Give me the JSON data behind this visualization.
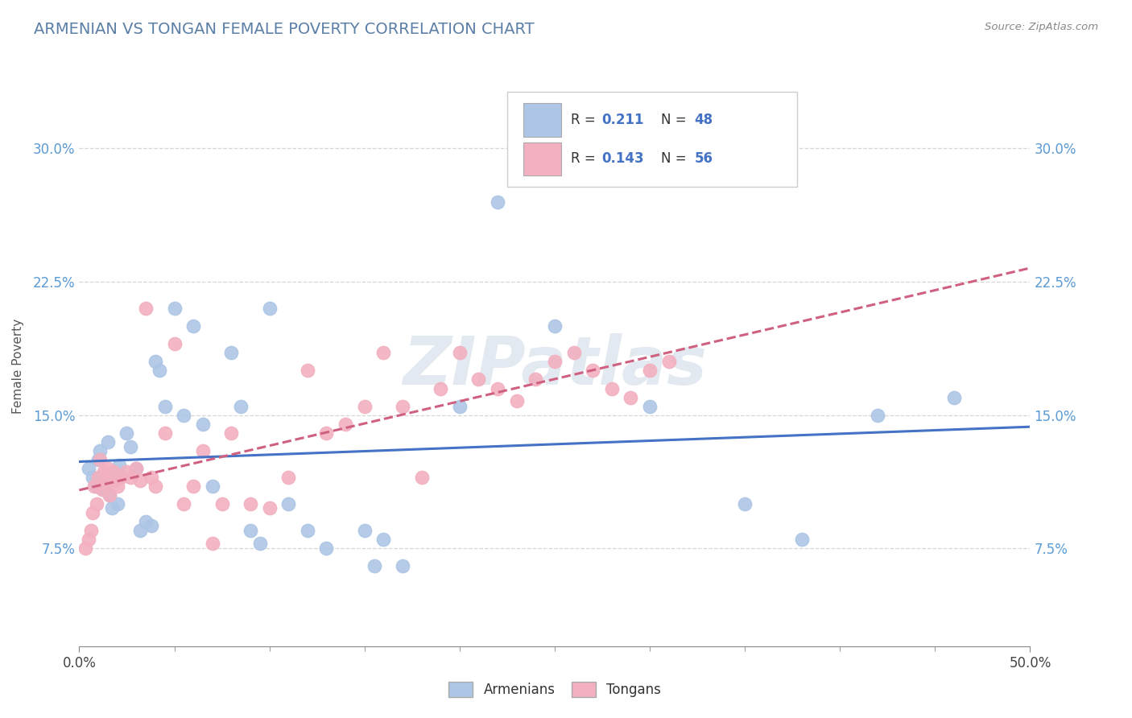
{
  "title": "ARMENIAN VS TONGAN FEMALE POVERTY CORRELATION CHART",
  "source": "Source: ZipAtlas.com",
  "ylabel": "Female Poverty",
  "yticks_labels": [
    "7.5%",
    "15.0%",
    "22.5%",
    "30.0%"
  ],
  "ytick_vals": [
    0.075,
    0.15,
    0.225,
    0.3
  ],
  "xlim": [
    0.0,
    0.5
  ],
  "ylim": [
    0.02,
    0.335
  ],
  "r_armenian": 0.211,
  "n_armenian": 48,
  "r_tongan": 0.143,
  "n_tongan": 56,
  "armenian_color": "#adc6e5",
  "tongan_color": "#f2b0c0",
  "armenian_line_color": "#4472c4",
  "tongan_line_color": "#d06080",
  "grid_color": "#cccccc",
  "title_color": "#5b7fa6",
  "tick_color": "#5b9bd5",
  "background_color": "#ffffff",
  "armenians_x": [
    0.005,
    0.007,
    0.009,
    0.01,
    0.011,
    0.012,
    0.013,
    0.015,
    0.016,
    0.017,
    0.018,
    0.02,
    0.021,
    0.022,
    0.025,
    0.027,
    0.03,
    0.032,
    0.035,
    0.038,
    0.04,
    0.042,
    0.045,
    0.05,
    0.055,
    0.06,
    0.065,
    0.07,
    0.08,
    0.085,
    0.09,
    0.095,
    0.1,
    0.11,
    0.12,
    0.13,
    0.15,
    0.155,
    0.16,
    0.17,
    0.2,
    0.22,
    0.25,
    0.3,
    0.35,
    0.38,
    0.42,
    0.46
  ],
  "armenians_y": [
    0.12,
    0.115,
    0.11,
    0.125,
    0.13,
    0.112,
    0.108,
    0.135,
    0.105,
    0.098,
    0.118,
    0.1,
    0.122,
    0.116,
    0.14,
    0.132,
    0.12,
    0.085,
    0.09,
    0.088,
    0.18,
    0.175,
    0.155,
    0.21,
    0.15,
    0.2,
    0.145,
    0.11,
    0.185,
    0.155,
    0.085,
    0.078,
    0.21,
    0.1,
    0.085,
    0.075,
    0.085,
    0.065,
    0.08,
    0.065,
    0.155,
    0.27,
    0.2,
    0.155,
    0.1,
    0.08,
    0.15,
    0.16
  ],
  "tongans_x": [
    0.003,
    0.005,
    0.006,
    0.007,
    0.008,
    0.009,
    0.01,
    0.011,
    0.012,
    0.013,
    0.014,
    0.015,
    0.016,
    0.017,
    0.018,
    0.019,
    0.02,
    0.022,
    0.025,
    0.027,
    0.03,
    0.032,
    0.035,
    0.038,
    0.04,
    0.045,
    0.05,
    0.055,
    0.06,
    0.065,
    0.07,
    0.075,
    0.08,
    0.09,
    0.1,
    0.11,
    0.12,
    0.13,
    0.14,
    0.15,
    0.16,
    0.17,
    0.18,
    0.19,
    0.2,
    0.21,
    0.22,
    0.23,
    0.24,
    0.25,
    0.26,
    0.27,
    0.28,
    0.29,
    0.3,
    0.31
  ],
  "tongans_y": [
    0.075,
    0.08,
    0.085,
    0.095,
    0.11,
    0.1,
    0.115,
    0.125,
    0.108,
    0.118,
    0.112,
    0.12,
    0.105,
    0.115,
    0.118,
    0.113,
    0.11,
    0.115,
    0.118,
    0.115,
    0.12,
    0.113,
    0.21,
    0.115,
    0.11,
    0.14,
    0.19,
    0.1,
    0.11,
    0.13,
    0.078,
    0.1,
    0.14,
    0.1,
    0.098,
    0.115,
    0.175,
    0.14,
    0.145,
    0.155,
    0.185,
    0.155,
    0.115,
    0.165,
    0.185,
    0.17,
    0.165,
    0.158,
    0.17,
    0.18,
    0.185,
    0.175,
    0.165,
    0.16,
    0.175,
    0.18
  ],
  "watermark": "ZIPatlas",
  "title_fontsize": 14,
  "label_fontsize": 11,
  "tick_fontsize": 12
}
